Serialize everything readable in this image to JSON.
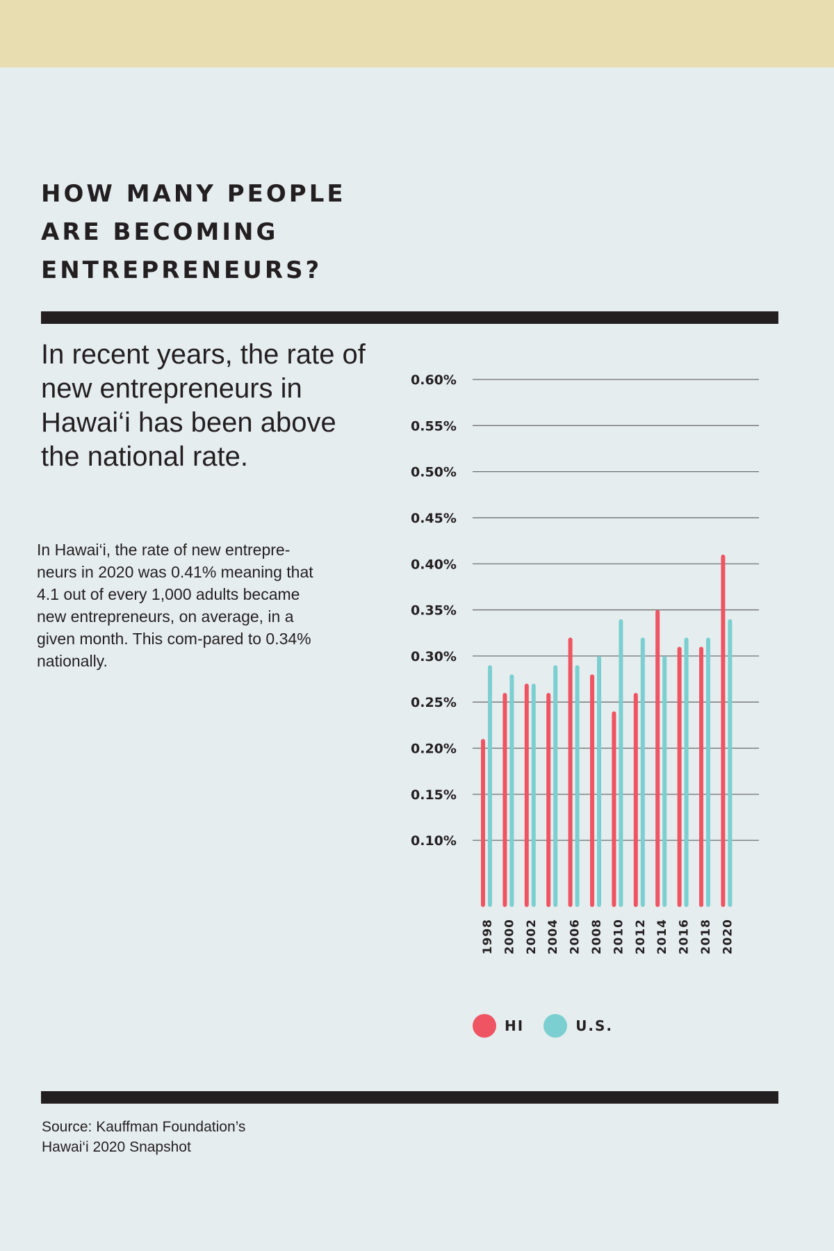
{
  "header": {
    "title_lines": [
      "HOW MANY PEOPLE",
      "ARE BECOMING",
      "ENTREPRENEURS?"
    ]
  },
  "lead_text": "In recent years, the rate of new entrepreneurs in Hawai‘i has been above the national rate.",
  "body_text": "In Hawai‘i, the rate of new entrepre-neurs in 2020 was 0.41% meaning that 4.1 out of every 1,000 adults became new entrepreneurs, on average, in a given month. This com-pared to 0.34% nationally.",
  "source": {
    "line1": "Source: Kauffman Foundation’s",
    "line2": "Hawai‘i 2020 Snapshot"
  },
  "colors": {
    "hi": "#ee5462",
    "us": "#7ccfd0",
    "top_band": "#e8ddb0",
    "background": "#e6edef",
    "rules": "#231f20"
  },
  "chart_data": {
    "type": "bar",
    "title": "",
    "xlabel": "",
    "ylabel": "",
    "categories": [
      "1998",
      "2000",
      "2002",
      "2004",
      "2006",
      "2008",
      "2010",
      "2012",
      "2014",
      "2016",
      "2018",
      "2020"
    ],
    "series": [
      {
        "name": "HI",
        "color": "#ee5462",
        "values": [
          0.21,
          0.26,
          0.27,
          0.26,
          0.32,
          0.28,
          0.24,
          0.26,
          0.35,
          0.31,
          0.31,
          0.41
        ]
      },
      {
        "name": "U.S.",
        "color": "#7ccfd0",
        "values": [
          0.29,
          0.28,
          0.27,
          0.29,
          0.29,
          0.3,
          0.34,
          0.32,
          0.3,
          0.32,
          0.32,
          0.34
        ]
      }
    ],
    "yticks": [
      0.1,
      0.15,
      0.2,
      0.25,
      0.3,
      0.35,
      0.4,
      0.45,
      0.5,
      0.55,
      0.6
    ],
    "ytick_labels": [
      "0.10%",
      "0.15%",
      "0.20%",
      "0.25%",
      "0.30%",
      "0.35%",
      "0.40%",
      "0.45%",
      "0.50%",
      "0.55%",
      "0.60%"
    ],
    "ylim": [
      0.03,
      0.6
    ],
    "grid": true,
    "legend": {
      "position": "bottom",
      "entries": [
        "HI",
        "U.S."
      ]
    }
  }
}
